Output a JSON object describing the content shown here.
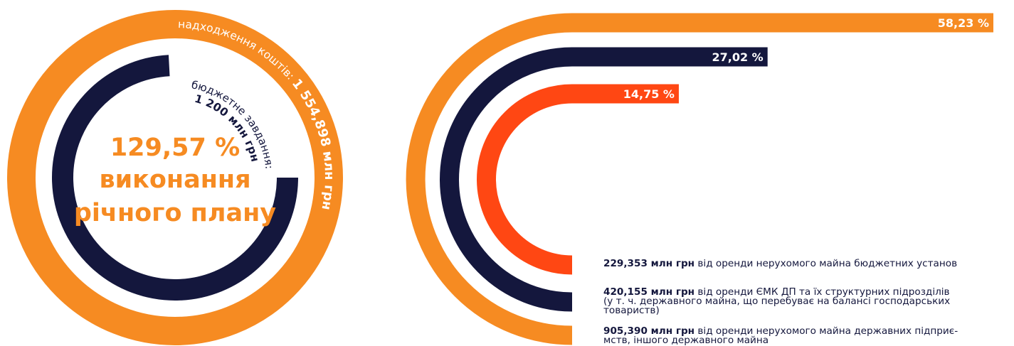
{
  "colors": {
    "orange": "#F68B22",
    "navy": "#14173D",
    "red": "#FF4713",
    "white": "#FFFFFF"
  },
  "left": {
    "income_label": "надходження коштів: ",
    "income_value": "1 554,898 млн грн",
    "budget_label": "бюджетне завдання:",
    "budget_value": "1 200 млн грн",
    "percent": "129,57 %",
    "caption_line1": "виконання",
    "caption_line2": "річного плану"
  },
  "right": {
    "legend": [
      {
        "amount": "229,353 млн грн",
        "text": " від оренди нерухомого майна бюджетних установ"
      },
      {
        "amount": "420,155 млн грн",
        "text": " від оренди ЄМК ДП та їх структурних підрозділів",
        "line2": "(у т. ч. державного майна, що перебуває на балансі господарських",
        "line3": "товариств)"
      },
      {
        "amount": "905,390 млн грн",
        "text": " від оренди нерухомого майна державних підприє-",
        "line2": "мств, іншого державного майна"
      }
    ]
  },
  "chart_data": [
    {
      "type": "pie",
      "title": "129,57 % виконання річного плану",
      "series": [
        {
          "name": "надходження коштів",
          "value": 1554.898,
          "unit": "млн грн"
        },
        {
          "name": "бюджетне завдання",
          "value": 1200,
          "unit": "млн грн"
        }
      ],
      "percent_of_plan": 129.57
    },
    {
      "type": "bar",
      "categories": [
        "від оренди нерухомого майна державних підприємств, іншого державного майна",
        "від оренди ЄМК ДП та їх структурних підрозділів",
        "від оренди нерухомого майна бюджетних установ"
      ],
      "values": [
        58.23,
        27.02,
        14.75
      ],
      "labels": [
        "58,23 %",
        "27,02 %",
        "14,75 %"
      ],
      "amounts": [
        "905,390 млн грн",
        "420,155 млн грн",
        "229,353 млн грн"
      ],
      "unit": "%"
    }
  ]
}
